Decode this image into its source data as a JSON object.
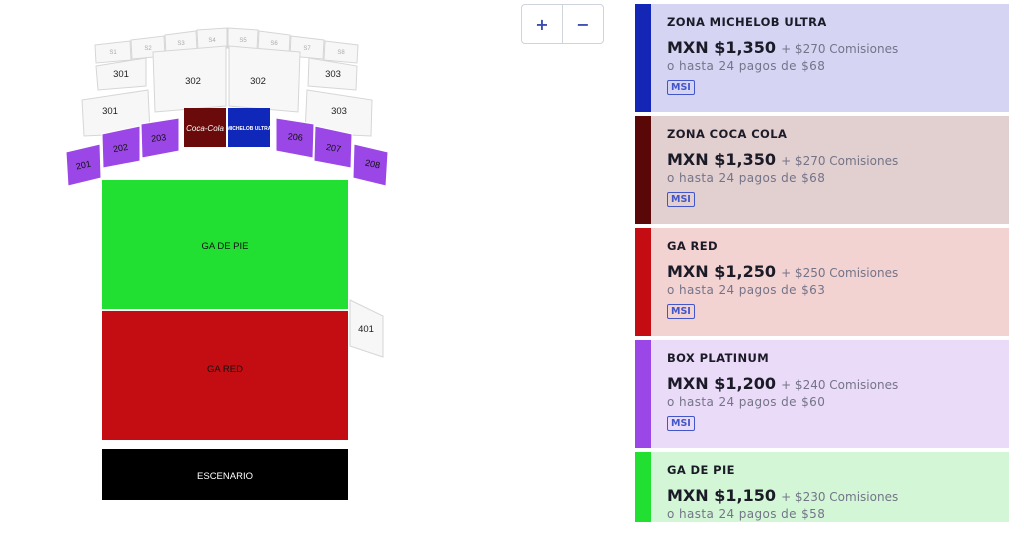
{
  "zoom": {
    "in_label": "+",
    "out_label": "−"
  },
  "map": {
    "top_row": [
      "S1",
      "S2",
      "S3",
      "S4",
      "S5",
      "S6",
      "S7",
      "S8"
    ],
    "s301a": "301",
    "s302a": "302",
    "s302b": "302",
    "s303a": "303",
    "s301b": "301",
    "s303b": "303",
    "s201": "201",
    "s202": "202",
    "s203": "203",
    "s206": "206",
    "s207": "207",
    "s208": "208",
    "coca_logo": "Coca-Cola",
    "michelob_logo": "MICHELOB ULTRA",
    "ga_pie": "GA DE PIE",
    "ga_red": "GA RED",
    "s401": "401",
    "stage": "ESCENARIO",
    "colors": {
      "purple": "#9b46e6",
      "coca": "#6b0a0a",
      "michelob": "#1028b9",
      "green": "#22e032",
      "red": "#c30d13",
      "stage": "#000000"
    }
  },
  "zones": [
    {
      "name": "ZONA MICHELOB ULTRA",
      "price": "MXN $1,350",
      "fees": "+ $270 Comisiones",
      "installments": "o hasta 24 pagos de $68",
      "badge": "MSI",
      "bar_color": "#1426b5",
      "bg_color": "#d5d4f3"
    },
    {
      "name": "ZONA COCA COLA",
      "price": "MXN $1,350",
      "fees": "+ $270 Comisiones",
      "installments": "o hasta 24 pagos de $68",
      "badge": "MSI",
      "bar_color": "#5a0707",
      "bg_color": "#e2cfcf"
    },
    {
      "name": "GA RED",
      "price": "MXN $1,250",
      "fees": "+ $250 Comisiones",
      "installments": "o hasta 24 pagos de $63",
      "badge": "MSI",
      "bar_color": "#c30d13",
      "bg_color": "#f3d2d2"
    },
    {
      "name": "BOX PLATINUM",
      "price": "MXN $1,200",
      "fees": "+ $240 Comisiones",
      "installments": "o hasta 24 pagos de $60",
      "badge": "MSI",
      "bar_color": "#9b46e6",
      "bg_color": "#eadbf8"
    },
    {
      "name": "GA DE PIE",
      "price": "MXN $1,150",
      "fees": "+ $230 Comisiones",
      "installments": "o hasta 24 pagos de $58",
      "badge": "",
      "bar_color": "#22e032",
      "bg_color": "#d3f7d6"
    }
  ]
}
